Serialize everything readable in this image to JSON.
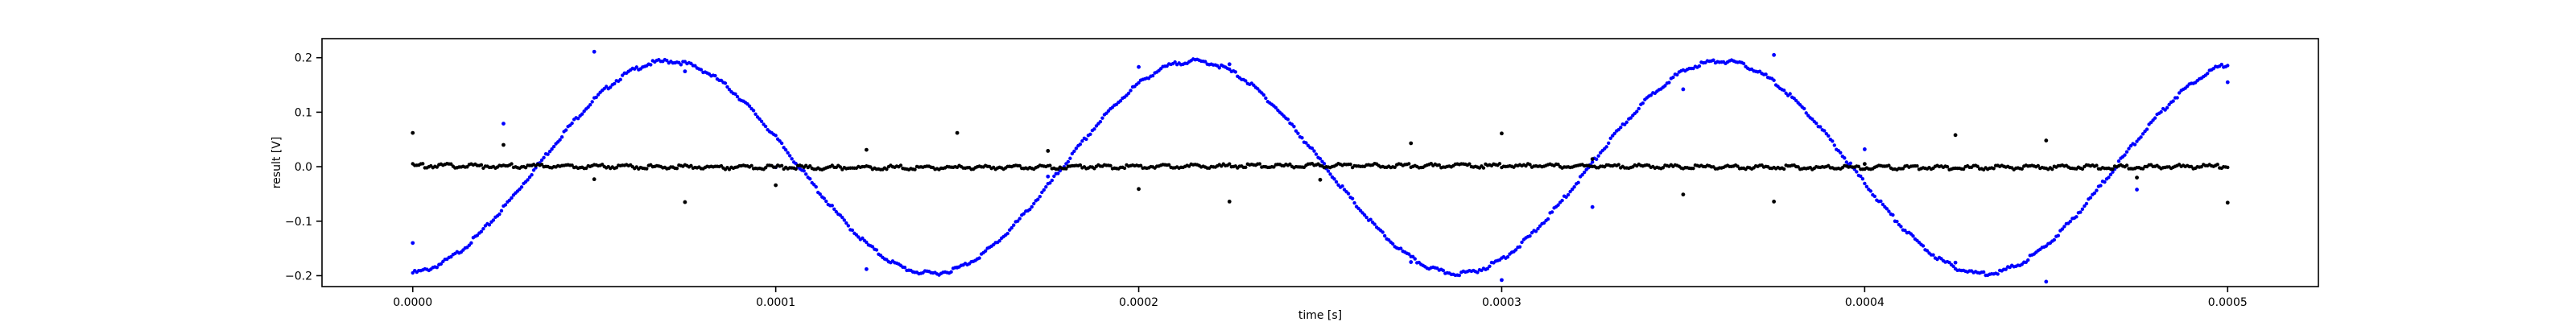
{
  "chart_data": {
    "type": "scatter",
    "title": "",
    "xlabel": "time [s]",
    "ylabel": "result [V]",
    "xlim": [
      -2.5e-05,
      0.000525
    ],
    "ylim": [
      -0.22,
      0.235
    ],
    "grid": false,
    "legend": null,
    "x_ticks": [
      0,
      0.0001,
      0.0002,
      0.0003,
      0.0004,
      0.0005
    ],
    "x_tick_labels": [
      "0.0000",
      "0.0001",
      "0.0002",
      "0.0003",
      "0.0004",
      "0.0005"
    ],
    "y_ticks": [
      -0.2,
      -0.1,
      0.0,
      0.1,
      0.2
    ],
    "y_tick_labels": [
      "−0.2",
      "−0.1",
      "0.0",
      "0.1",
      "0.2"
    ],
    "series": [
      {
        "color": "#0000ff",
        "marker": "dot",
        "period": 0.000145,
        "x": [
          0,
          2.5e-05,
          5e-05,
          7.5e-05,
          0.0001,
          0.000125,
          0.00015,
          0.000175,
          0.0002,
          0.000225,
          0.00025,
          0.000275,
          0.0003,
          0.000325,
          0.00035,
          0.000375,
          0.0004,
          0.000425,
          0.00045,
          0.000475,
          0.0005
        ],
        "y": [
          -0.14,
          0.079,
          0.211,
          0.175,
          -0.001,
          -0.188,
          -0.185,
          -0.018,
          0.183,
          0.188,
          0.002,
          -0.175,
          -0.208,
          -0.074,
          0.142,
          0.205,
          0.032,
          -0.176,
          -0.211,
          -0.042,
          0.155
        ]
      },
      {
        "color": "#000000",
        "marker": "dot",
        "period": 0.00029,
        "x": [
          0,
          2.5e-05,
          5e-05,
          7.5e-05,
          0.0001,
          0.000125,
          0.00015,
          0.000175,
          0.0002,
          0.000225,
          0.00025,
          0.000275,
          0.0003,
          0.000325,
          0.00035,
          0.000375,
          0.0004,
          0.000425,
          0.00045,
          0.000475,
          0.0005
        ],
        "y": [
          0.062,
          0.04,
          -0.023,
          -0.065,
          -0.034,
          0.031,
          0.062,
          0.029,
          -0.041,
          -0.064,
          -0.024,
          0.043,
          0.061,
          0.014,
          -0.051,
          -0.064,
          0.005,
          0.058,
          0.048,
          -0.02,
          -0.066
        ]
      }
    ]
  }
}
